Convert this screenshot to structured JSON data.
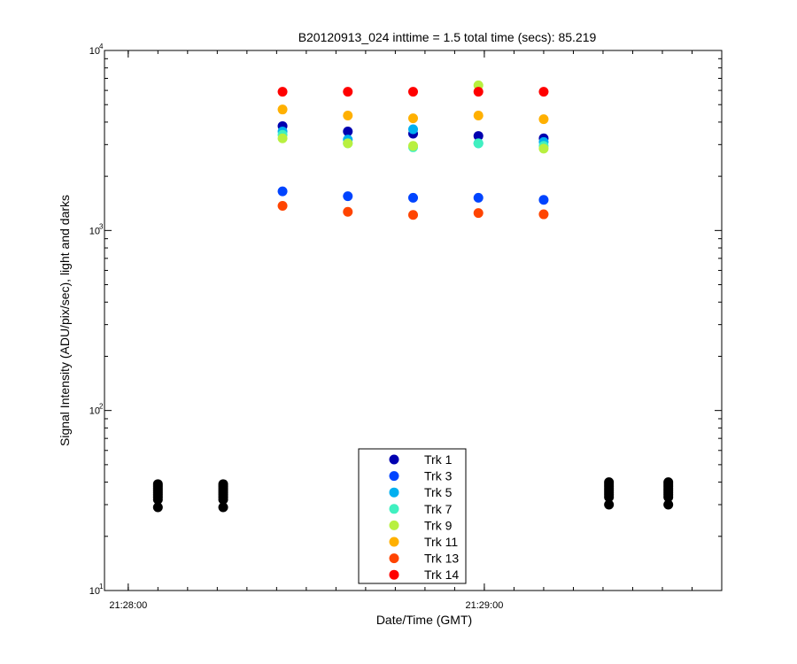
{
  "chart_data": {
    "type": "scatter",
    "title": "B20120913_024 inttime = 1.5 total time (secs): 85.219",
    "xlabel": "Date/Time (GMT)",
    "ylabel": "Signal Intensity (ADU/pix/sec), light and darks",
    "yscale": "log",
    "ylim": [
      10,
      10000
    ],
    "xlim": [
      "21:27:56",
      "21:29:40"
    ],
    "x_ticks": [
      "21:28:00",
      "21:29:00"
    ],
    "y_ticks": [
      {
        "base": "10",
        "exp": "1",
        "value": 10
      },
      {
        "base": "10",
        "exp": "2",
        "value": 100
      },
      {
        "base": "10",
        "exp": "3",
        "value": 1000
      },
      {
        "base": "10",
        "exp": "4",
        "value": 10000
      }
    ],
    "grid": false,
    "legend_position": "bottom-center",
    "series": [
      {
        "name": "Trk 1",
        "color": "#0000b0",
        "x": [
          "21:28:26",
          "21:28:37",
          "21:28:48",
          "21:28:59",
          "21:29:10"
        ],
        "y": [
          3800,
          3550,
          3450,
          3350,
          3250
        ]
      },
      {
        "name": "Trk 3",
        "color": "#0044ff",
        "x": [
          "21:28:26",
          "21:28:37",
          "21:28:48",
          "21:28:59",
          "21:29:10"
        ],
        "y": [
          1650,
          1550,
          1520,
          1520,
          1480
        ]
      },
      {
        "name": "Trk 5",
        "color": "#00b0f0",
        "x": [
          "21:28:26",
          "21:28:37",
          "21:28:48",
          "21:28:59",
          "21:29:10"
        ],
        "y": [
          3550,
          3200,
          3650,
          3050,
          3100
        ]
      },
      {
        "name": "Trk 7",
        "color": "#40f0c0",
        "x": [
          "21:28:26",
          "21:28:37",
          "21:28:48",
          "21:28:59",
          "21:29:10"
        ],
        "y": [
          3400,
          3050,
          2900,
          3050,
          2950
        ]
      },
      {
        "name": "Trk 9",
        "color": "#b8f040",
        "x": [
          "21:28:26",
          "21:28:37",
          "21:28:48",
          "21:28:59",
          "21:29:10"
        ],
        "y": [
          3250,
          3050,
          2950,
          6400,
          2850
        ]
      },
      {
        "name": "Trk 11",
        "color": "#ffb000",
        "x": [
          "21:28:26",
          "21:28:37",
          "21:28:48",
          "21:28:59",
          "21:29:10"
        ],
        "y": [
          4700,
          4350,
          4200,
          4350,
          4150
        ]
      },
      {
        "name": "Trk 13",
        "color": "#ff4400",
        "x": [
          "21:28:26",
          "21:28:37",
          "21:28:48",
          "21:28:59",
          "21:29:10"
        ],
        "y": [
          1370,
          1270,
          1220,
          1250,
          1230
        ]
      },
      {
        "name": "Trk 14",
        "color": "#ff0000",
        "x": [
          "21:28:26",
          "21:28:37",
          "21:28:48",
          "21:28:59",
          "21:29:10"
        ],
        "y": [
          5900,
          5900,
          5900,
          5900,
          5900
        ]
      }
    ],
    "darks": {
      "color": "#000000",
      "groups": [
        {
          "x": "21:28:05",
          "y": [
            29,
            32,
            33,
            34,
            35,
            36,
            37,
            38,
            39
          ]
        },
        {
          "x": "21:28:16",
          "y": [
            29,
            32,
            33,
            34,
            35,
            36,
            37,
            38,
            39
          ]
        },
        {
          "x": "21:29:21",
          "y": [
            30,
            33,
            34,
            35,
            36,
            37,
            38,
            39,
            40
          ]
        },
        {
          "x": "21:29:31",
          "y": [
            30,
            33,
            34,
            35,
            36,
            37,
            38,
            39,
            40
          ]
        }
      ]
    }
  }
}
